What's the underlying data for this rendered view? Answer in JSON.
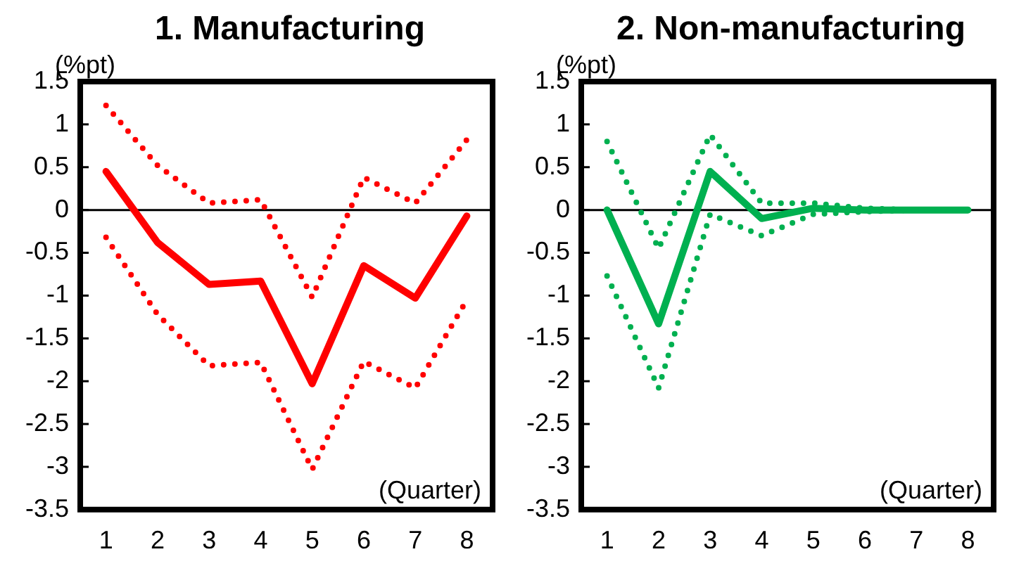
{
  "chart_data": [
    {
      "type": "line",
      "title": "1. Manufacturing",
      "ylabel": "(%pt)",
      "xlabel": "(Quarter)",
      "categories": [
        "1",
        "2",
        "3",
        "4",
        "5",
        "6",
        "7",
        "8"
      ],
      "ylim": [
        -3.5,
        1.5
      ],
      "yticks": [
        -3.5,
        -3,
        -2.5,
        -2,
        -1.5,
        -1,
        -0.5,
        0,
        0.5,
        1,
        1.5
      ],
      "grid": false,
      "legend": false,
      "marker": "none",
      "ref_lines": [
        {
          "axis": "y",
          "value": 0,
          "color": "#000000"
        }
      ],
      "series": [
        {
          "color": "#ff0000",
          "line_style": "dotted",
          "values": [
            1.22,
            0.52,
            0.08,
            0.12,
            -1.02,
            0.38,
            0.08,
            0.82
          ]
        },
        {
          "color": "#ff0000",
          "line_style": "dotted",
          "values": [
            -0.32,
            -1.22,
            -1.82,
            -1.78,
            -3.03,
            -1.77,
            -2.08,
            -1.05
          ]
        },
        {
          "color": "#ff0000",
          "line_style": "solid",
          "values": [
            0.45,
            -0.38,
            -0.87,
            -0.83,
            -2.03,
            -0.65,
            -1.03,
            -0.07
          ]
        }
      ]
    },
    {
      "type": "line",
      "title": "2. Non-manufacturing",
      "ylabel": "(%pt)",
      "xlabel": "(Quarter)",
      "categories": [
        "1",
        "2",
        "3",
        "4",
        "5",
        "6",
        "7",
        "8"
      ],
      "ylim": [
        -3.5,
        1.5
      ],
      "yticks": [
        -3.5,
        -3,
        -2.5,
        -2,
        -1.5,
        -1,
        -0.5,
        0,
        0.5,
        1,
        1.5
      ],
      "grid": false,
      "legend": false,
      "marker": "none",
      "ref_lines": [
        {
          "axis": "y",
          "value": 0,
          "color": "#000000"
        }
      ],
      "series": [
        {
          "color": "#00b050",
          "line_style": "dotted",
          "values": [
            0.8,
            -0.45,
            0.88,
            0.08,
            0.08,
            0.02,
            0,
            0
          ]
        },
        {
          "color": "#00b050",
          "line_style": "dotted",
          "values": [
            -0.77,
            -2.08,
            -0.05,
            -0.3,
            -0.05,
            -0.02,
            0,
            0
          ]
        },
        {
          "color": "#00b050",
          "line_style": "solid",
          "values": [
            0,
            -1.33,
            0.45,
            -0.1,
            0.02,
            0,
            0,
            0
          ]
        }
      ]
    }
  ]
}
